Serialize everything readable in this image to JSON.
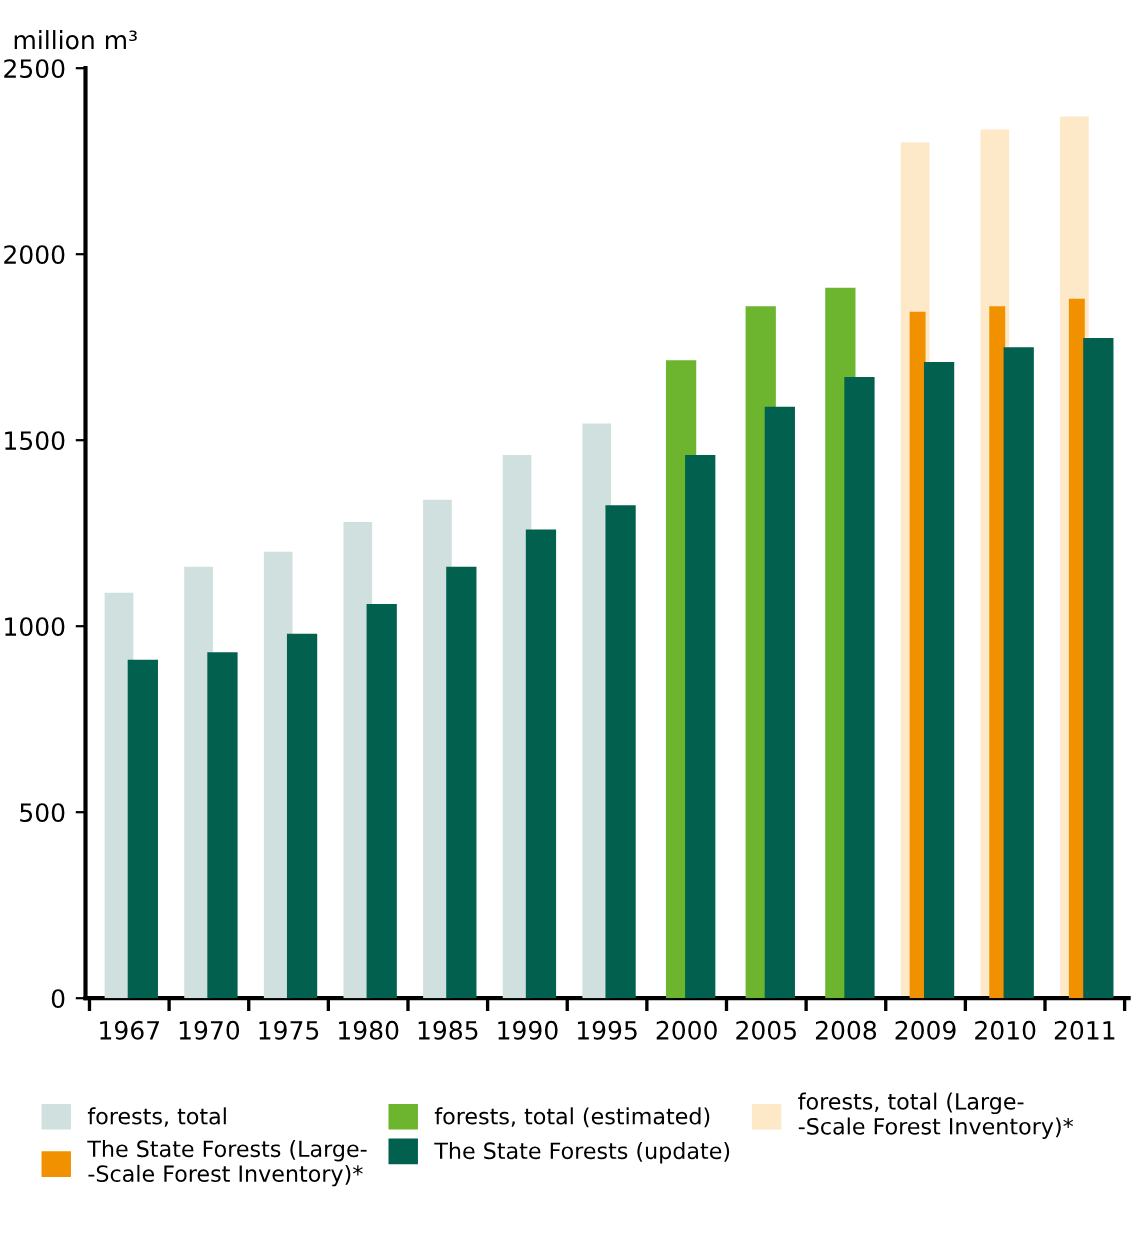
{
  "chart_data": {
    "type": "bar",
    "ylabel": "million m³",
    "categories": [
      "1967",
      "1970",
      "1975",
      "1980",
      "1985",
      "1990",
      "1995",
      "2000",
      "2005",
      "2008",
      "2009",
      "2010",
      "2011"
    ],
    "series": [
      {
        "name": "forests, total (Large-\n-Scale Forest Inventory)*",
        "color": "#fde8c8",
        "values": [
          null,
          null,
          null,
          null,
          null,
          null,
          null,
          null,
          null,
          null,
          2300,
          2335,
          2370
        ]
      },
      {
        "name": "The State Forests (Large-\n-Scale Forest Inventory)*",
        "color": "#f29100",
        "values": [
          null,
          null,
          null,
          null,
          null,
          null,
          null,
          null,
          null,
          null,
          1845,
          1860,
          1880
        ]
      },
      {
        "name": "forests, total",
        "color": "#cfe0df",
        "values": [
          1090,
          1160,
          1200,
          1280,
          1340,
          1460,
          1545,
          null,
          null,
          null,
          null,
          null,
          null
        ]
      },
      {
        "name": "forests, total (estimated)",
        "color": "#6db52f",
        "values": [
          null,
          null,
          null,
          null,
          null,
          null,
          null,
          1715,
          1860,
          1910,
          null,
          null,
          null
        ]
      },
      {
        "name": "The State Forests (update)",
        "color": "#02604f",
        "values": [
          910,
          930,
          980,
          1060,
          1160,
          1260,
          1325,
          1460,
          1590,
          1670,
          1710,
          1750,
          1775
        ]
      }
    ],
    "ylim": [
      0,
      2500
    ],
    "yticks": [
      0,
      500,
      1000,
      1500,
      2000,
      2500
    ],
    "grid": false,
    "legend": "bottom"
  }
}
